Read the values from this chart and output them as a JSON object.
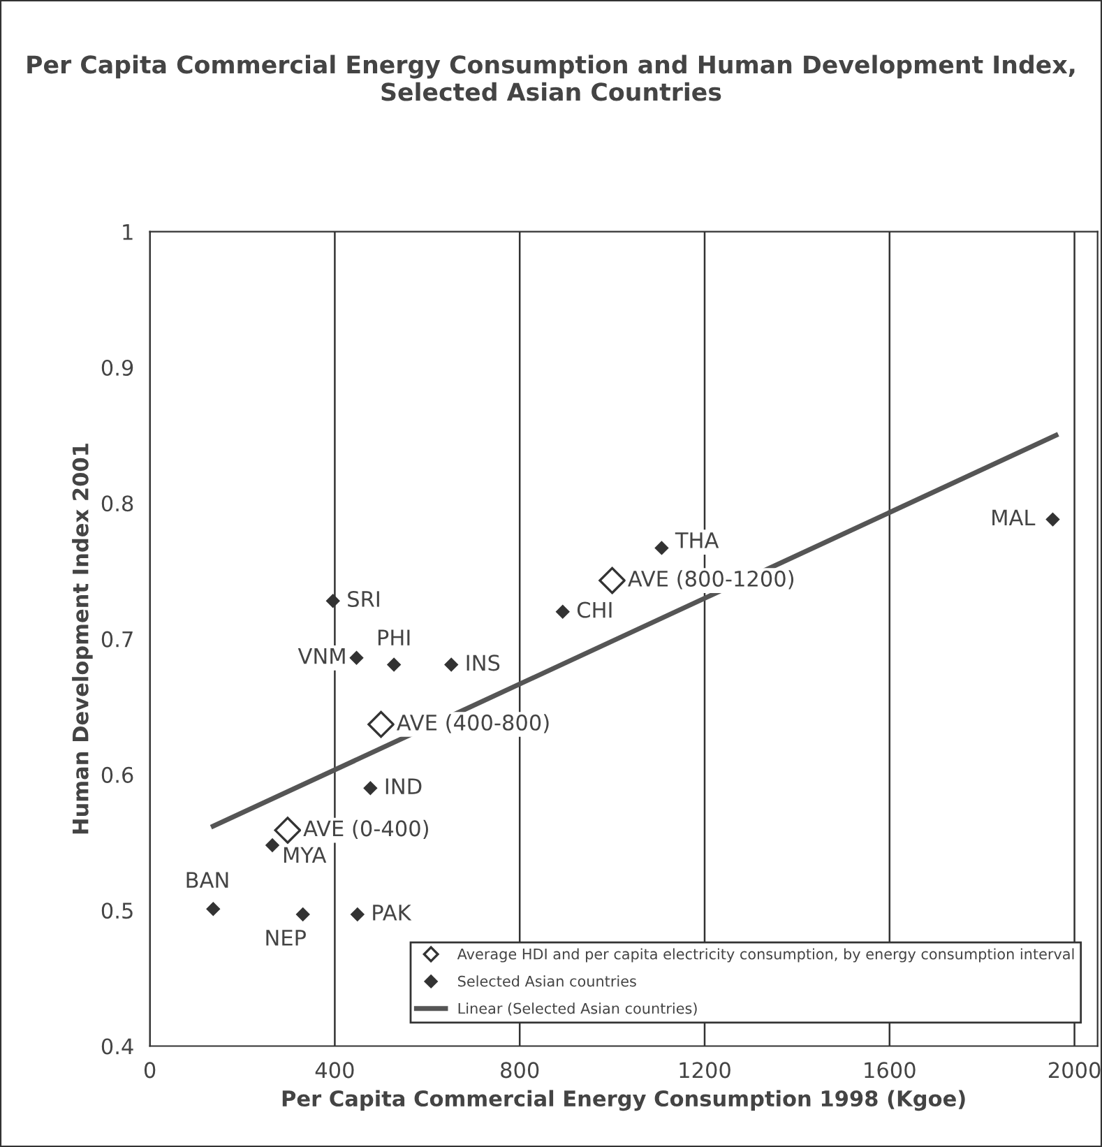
{
  "chart_data": {
    "type": "scatter",
    "title": "Per Capita Commercial Energy Consumption and Human Development Index, Selected Asian Countries",
    "xlabel": "Per Capita Commercial Energy Consumption 1998 (Kgoe)",
    "ylabel": "Human Development Index 2001",
    "xlim": [
      0,
      2050
    ],
    "xticks": [
      0,
      400,
      800,
      1200,
      1600,
      2000
    ],
    "ylim": [
      0.4,
      1
    ],
    "yticks": [
      0.4,
      0.5,
      0.6,
      0.7,
      0.8,
      0.9,
      1
    ],
    "grid": "x",
    "legend": "bottom right",
    "marker": "diamond",
    "series": [
      {
        "name": "Average HDI and per capita electricity consumption, by energy consumption interval",
        "color": "#ffffff",
        "x": [
          298,
          500,
          1000
        ],
        "values": [
          0.559,
          0.637,
          0.743
        ]
      },
      {
        "name": "Selected Asian countries",
        "color": "#333333",
        "x": [
          396,
          447,
          528,
          652,
          893,
          1107,
          1953,
          477,
          265,
          137,
          331,
          449
        ],
        "values": [
          0.728,
          0.686,
          0.681,
          0.681,
          0.72,
          0.767,
          0.788,
          0.59,
          0.548,
          0.501,
          0.497,
          0.497
        ]
      },
      {
        "name": "Linear (Selected Asian countries)",
        "type": "line",
        "color": "#555555",
        "x": [
          137,
          1960
        ],
        "values": [
          0.562,
          0.85
        ],
        "marker": "none"
      }
    ],
    "annotations": [
      {
        "text": "AVE (0-400)",
        "x": 298,
        "y": 0.559
      },
      {
        "text": "AVE (400-800)",
        "x": 500,
        "y": 0.637
      },
      {
        "text": "AVE (800-1200)",
        "x": 1000,
        "y": 0.743
      },
      {
        "text": "SRI",
        "x": 396,
        "y": 0.728
      },
      {
        "text": "VNM",
        "x": 447,
        "y": 0.686
      },
      {
        "text": "PHI",
        "x": 528,
        "y": 0.681
      },
      {
        "text": "INS",
        "x": 652,
        "y": 0.681
      },
      {
        "text": "CHI",
        "x": 893,
        "y": 0.72
      },
      {
        "text": "THA",
        "x": 1107,
        "y": 0.767
      },
      {
        "text": "MAL",
        "x": 1953,
        "y": 0.788
      },
      {
        "text": "IND",
        "x": 477,
        "y": 0.59
      },
      {
        "text": "MYA",
        "x": 265,
        "y": 0.548
      },
      {
        "text": "BAN",
        "x": 137,
        "y": 0.501
      },
      {
        "text": "NEP",
        "x": 331,
        "y": 0.497
      },
      {
        "text": "PAK",
        "x": 449,
        "y": 0.497
      }
    ]
  }
}
